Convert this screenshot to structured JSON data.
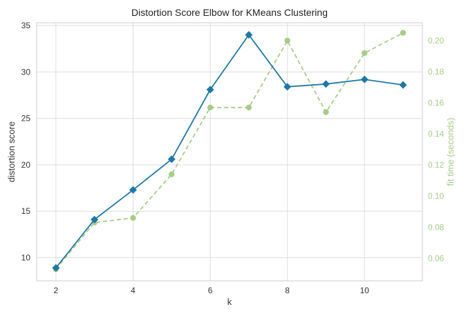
{
  "chart_data": {
    "type": "line",
    "title": "Distortion Score Elbow for KMeans Clustering",
    "xlabel": "k",
    "ylabel": "distortion score",
    "y2label": "fit time (seconds)",
    "x": [
      2,
      3,
      4,
      5,
      6,
      7,
      8,
      9,
      10,
      11
    ],
    "xlim": [
      1.5,
      11.5
    ],
    "ylim": [
      7.5,
      35.3
    ],
    "y2lim": [
      0.0455,
      0.2115
    ],
    "xticks": [
      "2",
      "4",
      "6",
      "8",
      "10"
    ],
    "yticks": [
      "10",
      "15",
      "20",
      "25",
      "30",
      "35"
    ],
    "y2ticks": [
      "0.06",
      "0.08",
      "0.10",
      "0.12",
      "0.14",
      "0.16",
      "0.18",
      "0.20"
    ],
    "grid": true,
    "series": [
      {
        "name": "",
        "axis": "left",
        "style": "solid",
        "marker": "diamond",
        "color": "#1f77a5",
        "values": [
          8.9,
          14.1,
          17.3,
          20.6,
          28.1,
          34.0,
          28.4,
          28.7,
          29.2,
          28.6
        ]
      },
      {
        "name": "",
        "axis": "right",
        "style": "dashed",
        "marker": "circle",
        "color": "#a8cc87",
        "values": [
          0.053,
          0.083,
          0.086,
          0.114,
          0.157,
          0.157,
          0.2,
          0.154,
          0.192,
          0.205
        ]
      }
    ]
  },
  "colors": {
    "grid": "#dddddd",
    "axis_text": "#333333",
    "right_axis_text": "#a8cc87"
  }
}
